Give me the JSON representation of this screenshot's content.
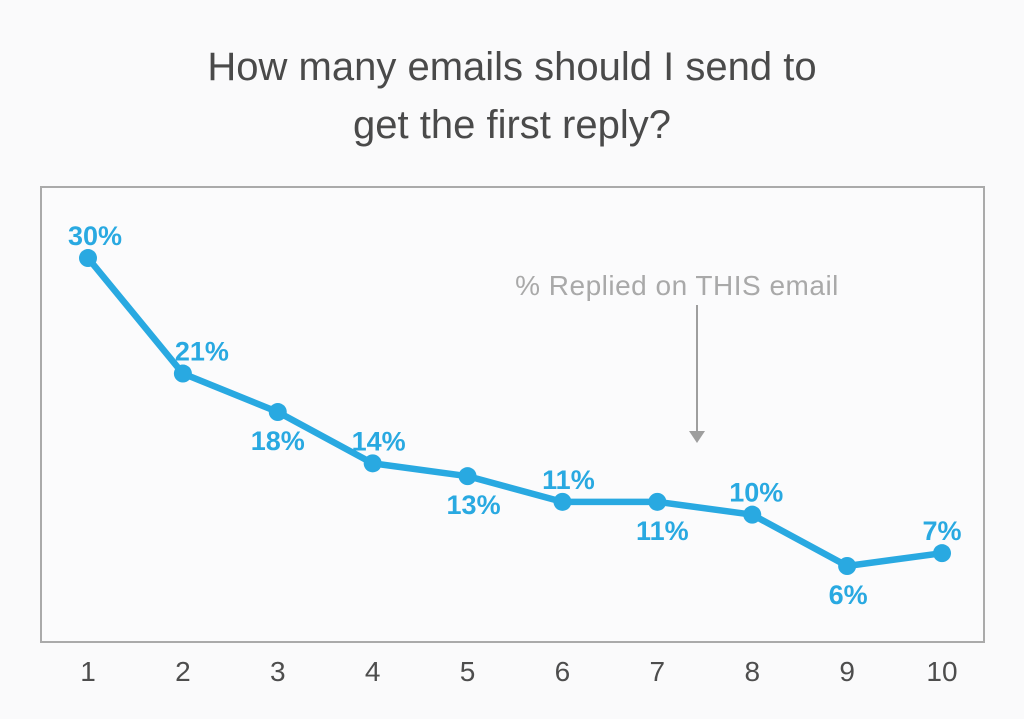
{
  "page": {
    "background": "#fafafb"
  },
  "chart_data": {
    "type": "line",
    "title": "How many emails should I send to get the first reply?",
    "title_lines": [
      "How many emails should I send to",
      "get the first reply?"
    ],
    "categories": [
      "1",
      "2",
      "3",
      "4",
      "5",
      "6",
      "7",
      "8",
      "9",
      "10"
    ],
    "series": [
      {
        "name": "% Replied on THIS email",
        "values": [
          30,
          21,
          18,
          14,
          13,
          11,
          11,
          10,
          6,
          7
        ]
      }
    ],
    "data_labels": [
      "30%",
      "21%",
      "18%",
      "14%",
      "13%",
      "11%",
      "11%",
      "10%",
      "6%",
      "7%"
    ],
    "label_positions": [
      "above",
      "above",
      "below",
      "above",
      "below",
      "above",
      "below",
      "above",
      "below",
      "above"
    ],
    "annotation": {
      "text": "% Replied on THIS email"
    },
    "xlabel": "",
    "ylabel": "",
    "ylim": [
      0,
      35.6
    ],
    "grid": false,
    "legend": "none",
    "colors": {
      "line": "#29a9e1",
      "point": "#29a9e1",
      "data_label": "#29a9e1",
      "axis_label": "#4d4d4d",
      "title": "#4a4a4a",
      "annotation": "#a9a9a9",
      "arrow": "#9e9e9e",
      "plot_border": "#aaaaaa",
      "background": "#fafafb",
      "plot_background": "#fbfbfc"
    }
  }
}
